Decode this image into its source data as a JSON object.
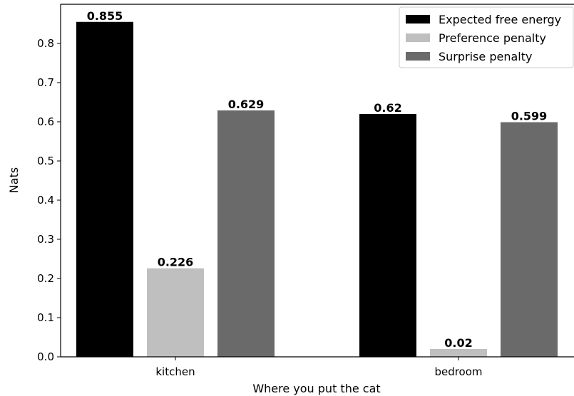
{
  "chart_data": {
    "type": "bar",
    "title": "",
    "xlabel": "Where you put the cat",
    "ylabel": "Nats",
    "categories": [
      "kitchen",
      "bedroom"
    ],
    "ylim": [
      0,
      0.9
    ],
    "yticks": [
      0.0,
      0.1,
      0.2,
      0.3,
      0.4,
      0.5,
      0.6,
      0.7,
      0.8
    ],
    "ytick_labels": [
      "0.0",
      "0.1",
      "0.2",
      "0.3",
      "0.4",
      "0.5",
      "0.6",
      "0.7",
      "0.8"
    ],
    "grid": false,
    "legend_position": "top-right",
    "series": [
      {
        "name": "Expected free energy",
        "color": "#000000",
        "values": [
          0.855,
          0.62
        ],
        "labels": [
          "0.855",
          "0.62"
        ]
      },
      {
        "name": "Preference penalty",
        "color": "#bfbfbf",
        "values": [
          0.226,
          0.02
        ],
        "labels": [
          "0.226",
          "0.02"
        ]
      },
      {
        "name": "Surprise penalty",
        "color": "#6a6a6a",
        "values": [
          0.629,
          0.599
        ],
        "labels": [
          "0.629",
          "0.599"
        ]
      }
    ]
  }
}
